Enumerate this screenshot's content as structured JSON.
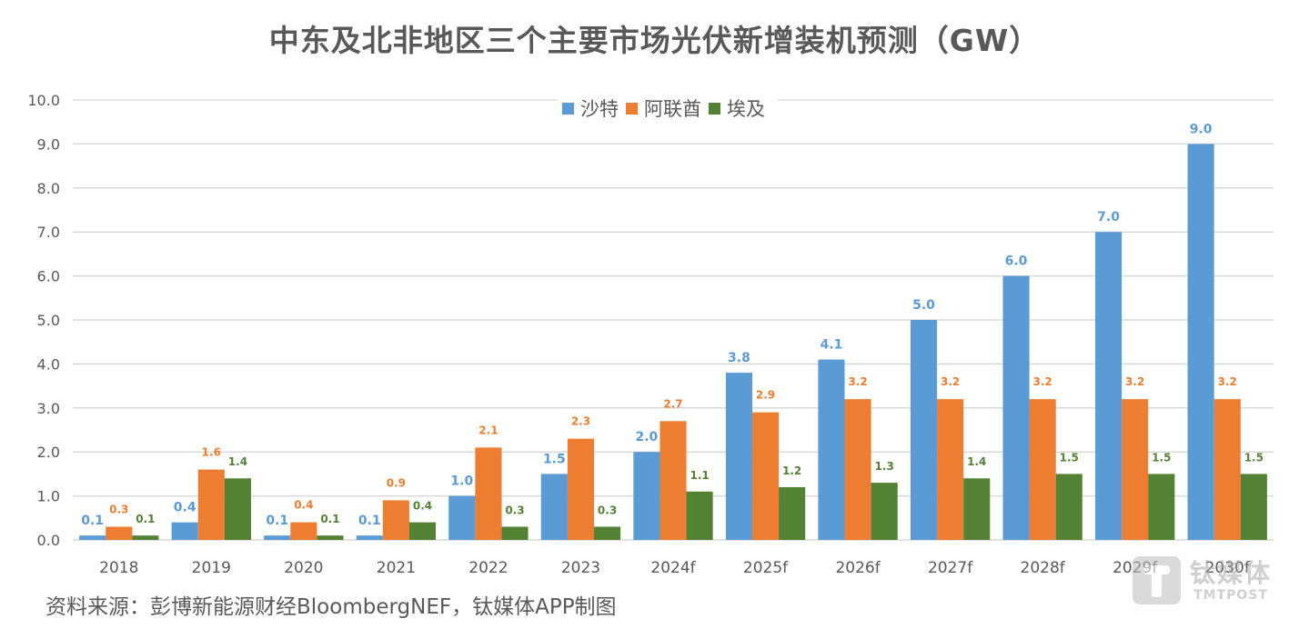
{
  "chart_data": {
    "type": "bar",
    "title": "中东及北非地区三个主要市场光伏新增装机预测（GW）",
    "xlabel": "",
    "ylabel": "",
    "ylim": [
      0,
      10
    ],
    "yticks": [
      "0.0",
      "1.0",
      "2.0",
      "3.0",
      "4.0",
      "5.0",
      "6.0",
      "7.0",
      "8.0",
      "9.0",
      "10.0"
    ],
    "grid": true,
    "legend_position": "top-center",
    "categories": [
      "2018",
      "2019",
      "2020",
      "2021",
      "2022",
      "2023",
      "2024f",
      "2025f",
      "2026f",
      "2027f",
      "2028f",
      "2029f",
      "2030f"
    ],
    "series": [
      {
        "name": "沙特",
        "color": "#5b9bd5",
        "values": [
          0.1,
          0.4,
          0.1,
          0.1,
          1.0,
          1.5,
          2.0,
          3.8,
          4.1,
          5.0,
          6.0,
          7.0,
          9.0
        ],
        "labels": [
          "0.1",
          "0.4",
          "0.1",
          "0.1",
          "1.0",
          "1.5",
          "2.0",
          "3.8",
          "4.1",
          "5.0",
          "6.0",
          "7.0",
          "9.0"
        ]
      },
      {
        "name": "阿联酋",
        "color": "#ed7d31",
        "values": [
          0.3,
          1.6,
          0.4,
          0.9,
          2.1,
          2.3,
          2.7,
          2.9,
          3.2,
          3.2,
          3.2,
          3.2,
          3.2
        ],
        "labels": [
          "0.3",
          "1.6",
          "0.4",
          "0.9",
          "2.1",
          "2.3",
          "2.7",
          "2.9",
          "3.2",
          "3.2",
          "3.2",
          "3.2",
          "3.2"
        ]
      },
      {
        "name": "埃及",
        "color": "#548235",
        "values": [
          0.1,
          1.4,
          0.1,
          0.4,
          0.3,
          0.3,
          1.1,
          1.2,
          1.3,
          1.4,
          1.5,
          1.5,
          1.5
        ],
        "labels": [
          "0.1",
          "1.4",
          "0.1",
          "0.4",
          "0.3",
          "0.3",
          "1.1",
          "1.2",
          "1.3",
          "1.4",
          "1.5",
          "1.5",
          "1.5"
        ]
      }
    ],
    "gridline_color": "#d9d9d9"
  },
  "source_note": "资料来源：彭博新能源财经BloombergNEF，钛媒体APP制图",
  "watermark": {
    "cn": "钛媒体",
    "en": "TMTPOST"
  }
}
